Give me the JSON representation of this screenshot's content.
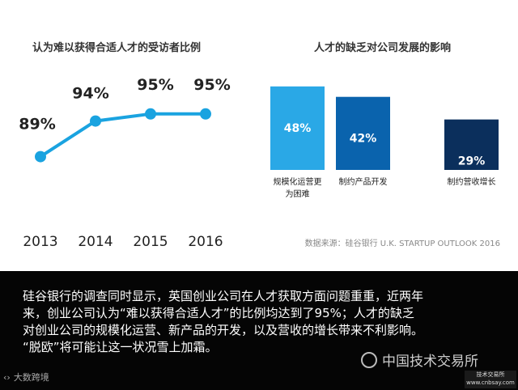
{
  "chart_data": [
    {
      "type": "line",
      "title": "认为难以获得合适人才的受访者比例",
      "categories": [
        "2013",
        "2014",
        "2015",
        "2016"
      ],
      "values": [
        89,
        94,
        95,
        95
      ],
      "value_labels": [
        "89%",
        "94%",
        "95%",
        "95%"
      ],
      "ylim": [
        86,
        96
      ],
      "color": "#1aa3e0"
    },
    {
      "type": "bar",
      "title": "人才的缺乏对公司发展的影响",
      "categories": [
        "规模化运营更为困难",
        "制约产品开发",
        "制约营收增长"
      ],
      "category_lines": [
        [
          "规模化运营更",
          "为困难"
        ],
        [
          "制约产品开发"
        ],
        [
          "制约营收增长"
        ]
      ],
      "values": [
        48,
        42,
        29
      ],
      "value_labels": [
        "48%",
        "42%",
        "29%"
      ],
      "ylim": [
        0,
        50
      ],
      "colors": [
        "#2aa8e6",
        "#0a63ad",
        "#0b2f5c"
      ]
    }
  ],
  "source_text": "数据来源：硅谷银行 U.K. STARTUP OUTLOOK 2016",
  "caption": {
    "line1": "硅谷银行的调查同时显示，英国创业公司在人才获取方面问题重重，近两年",
    "line2": "来，创业公司认为“难以获得合适人才”的比例均达到了95%；人才的缺乏",
    "line3": "对创业公司的规模化运营、新产品的开发，以及营收的增长带来不利影响。",
    "line4": "“脱欧”将可能让这一状况雪上加霜。"
  },
  "watermarks": {
    "left": "大数跨境",
    "right": "中国技术交易所",
    "badge_line1": "技术交易所",
    "badge_line2": "www.cnbsay.com"
  }
}
